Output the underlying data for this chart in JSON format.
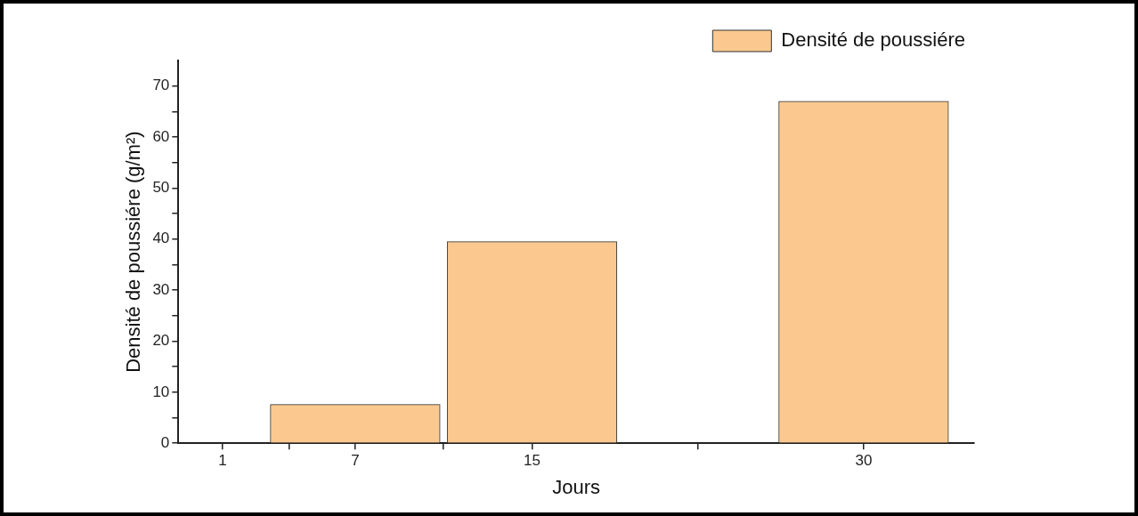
{
  "chart_data": {
    "type": "bar",
    "xlabel": "Jours",
    "ylabel": "Densité de poussiére (g/m²)",
    "x": [
      1,
      7,
      15,
      30
    ],
    "series": [
      {
        "name": "Densité de poussiére",
        "color": "#fbc98f",
        "values": [
          0,
          7.6,
          39.5,
          67
        ]
      }
    ],
    "xlim": [
      -1,
      35
    ],
    "xticks": [
      1,
      {
        "value": 4,
        "label": null
      },
      7,
      {
        "value": 11,
        "label": null
      },
      15,
      {
        "value": 22.5,
        "label": null
      },
      30
    ],
    "ylim": [
      0,
      75
    ],
    "yticks": [
      0,
      {
        "value": 5,
        "label": null
      },
      10,
      {
        "value": 15,
        "label": null
      },
      20,
      {
        "value": 25,
        "label": null
      },
      30,
      {
        "value": 35,
        "label": null
      },
      40,
      {
        "value": 45,
        "label": null
      },
      50,
      {
        "value": 55,
        "label": null
      },
      60,
      {
        "value": 65,
        "label": null
      },
      70
    ],
    "grid": false,
    "legend": "top right"
  }
}
